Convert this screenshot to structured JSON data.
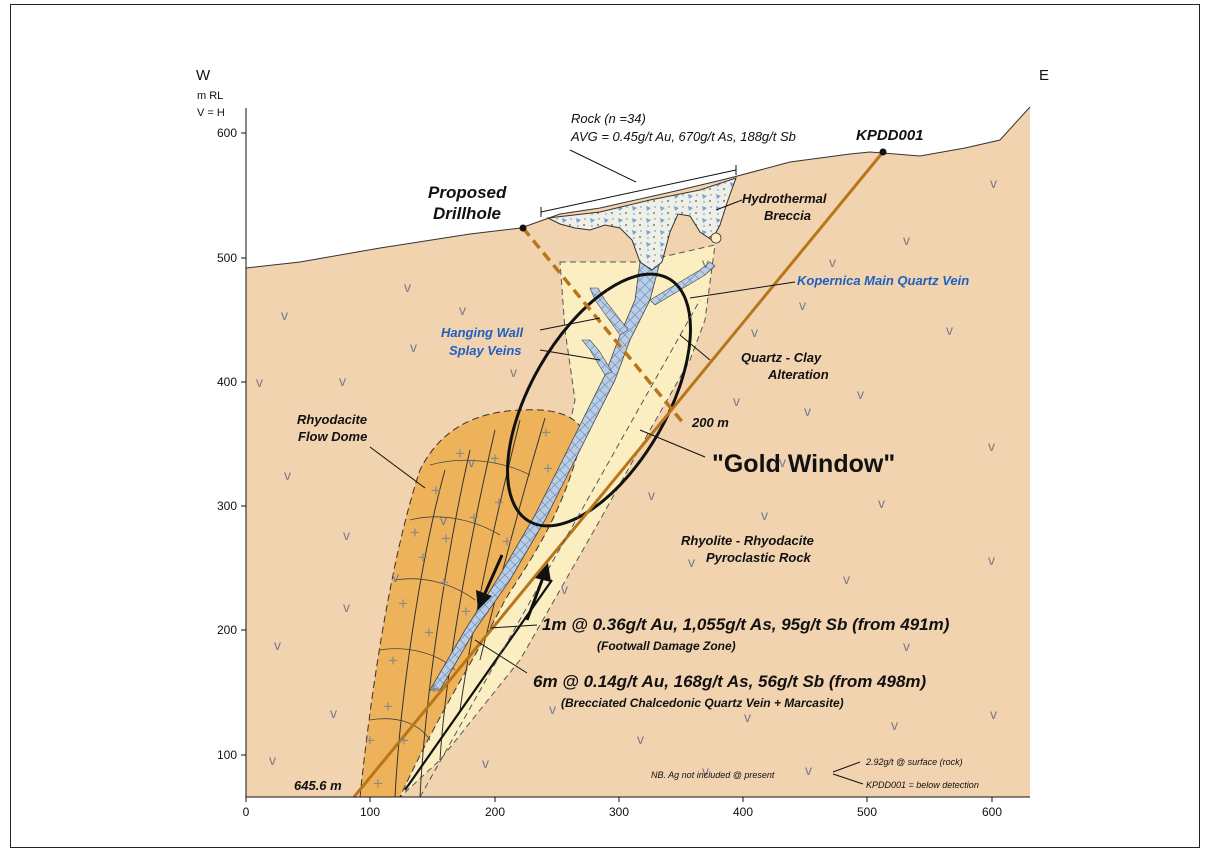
{
  "orientation": {
    "west": "W",
    "east": "E",
    "unit": "m RL",
    "scale": "V = H"
  },
  "y_axis": {
    "ticks": [
      "600",
      "500",
      "400",
      "300",
      "200",
      "100"
    ]
  },
  "x_axis": {
    "ticks": [
      "0",
      "100",
      "200",
      "300",
      "400",
      "500",
      "600"
    ]
  },
  "labels": {
    "rock_sample_line1": "Rock (n =34)",
    "rock_sample_line2": "AVG = 0.45g/t Au, 670g/t As, 188g/t Sb",
    "kpdd001": "KPDD001",
    "proposed_line1": "Proposed",
    "proposed_line2": "Drillhole",
    "hydro_line1": "Hydrothermal",
    "hydro_line2": "Breccia",
    "main_vein": "Kopernica Main Quartz Vein",
    "hanging_line1": "Hanging Wall",
    "hanging_line2": "Splay Veins",
    "qc_line1": "Quartz - Clay",
    "qc_line2": "Alteration",
    "rhyo_line1": "Rhyodacite",
    "rhyo_line2": "Flow Dome",
    "depth_200": "200 m",
    "gold_window": "\"Gold Window\"",
    "pyro_line1": "Rhyolite - Rhyodacite",
    "pyro_line2": "Pyroclastic Rock",
    "int1_main": "1m @ 0.36g/t Au, 1,055g/t As, 95g/t Sb (from 491m)",
    "int1_sub": "(Footwall Damage Zone)",
    "int2_main": "6m @ 0.14g/t Au, 168g/t As, 56g/t Sb (from 498m)",
    "int2_sub": "(Brecciated Chalcedonic Quartz Vein + Marcasite)",
    "depth_end": "645.6 m",
    "note_ag": "NB. Ag not included @ present",
    "note_surface": "2.92g/t @ surface (rock)",
    "note_kpdd": "KPDD001 = below detection"
  },
  "colors": {
    "host_rock": "#f2d3b0",
    "alteration": "#fbefc2",
    "dome": "#eeb35a",
    "vein": "#b9cde6",
    "drillhole": "#b8761a"
  }
}
